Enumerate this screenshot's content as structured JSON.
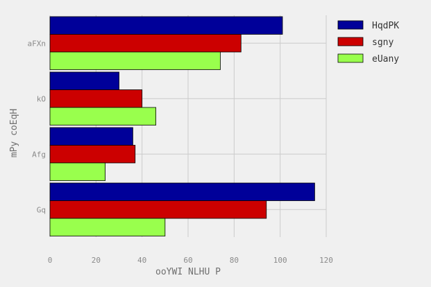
{
  "chart_data": {
    "type": "bar",
    "orientation": "horizontal",
    "categories": [
      "aFXn",
      "kO",
      "Afg",
      "Gq"
    ],
    "series": [
      {
        "name": "HqdPK",
        "color": "#000099",
        "values": [
          101,
          30,
          36,
          115
        ]
      },
      {
        "name": "sgny",
        "color": "#cc0000",
        "values": [
          83,
          40,
          37,
          94
        ]
      },
      {
        "name": "eUany",
        "color": "#99ff4d",
        "values": [
          74,
          46,
          24,
          50
        ]
      }
    ],
    "xlabel": "ooYWI NLHU  P",
    "ylabel": "mPy coEqH",
    "xlim": [
      0,
      120
    ],
    "xticks": [
      "0",
      "20",
      "40",
      "60",
      "80",
      "100",
      "120"
    ],
    "grid": true,
    "legend_position": "top-right"
  }
}
